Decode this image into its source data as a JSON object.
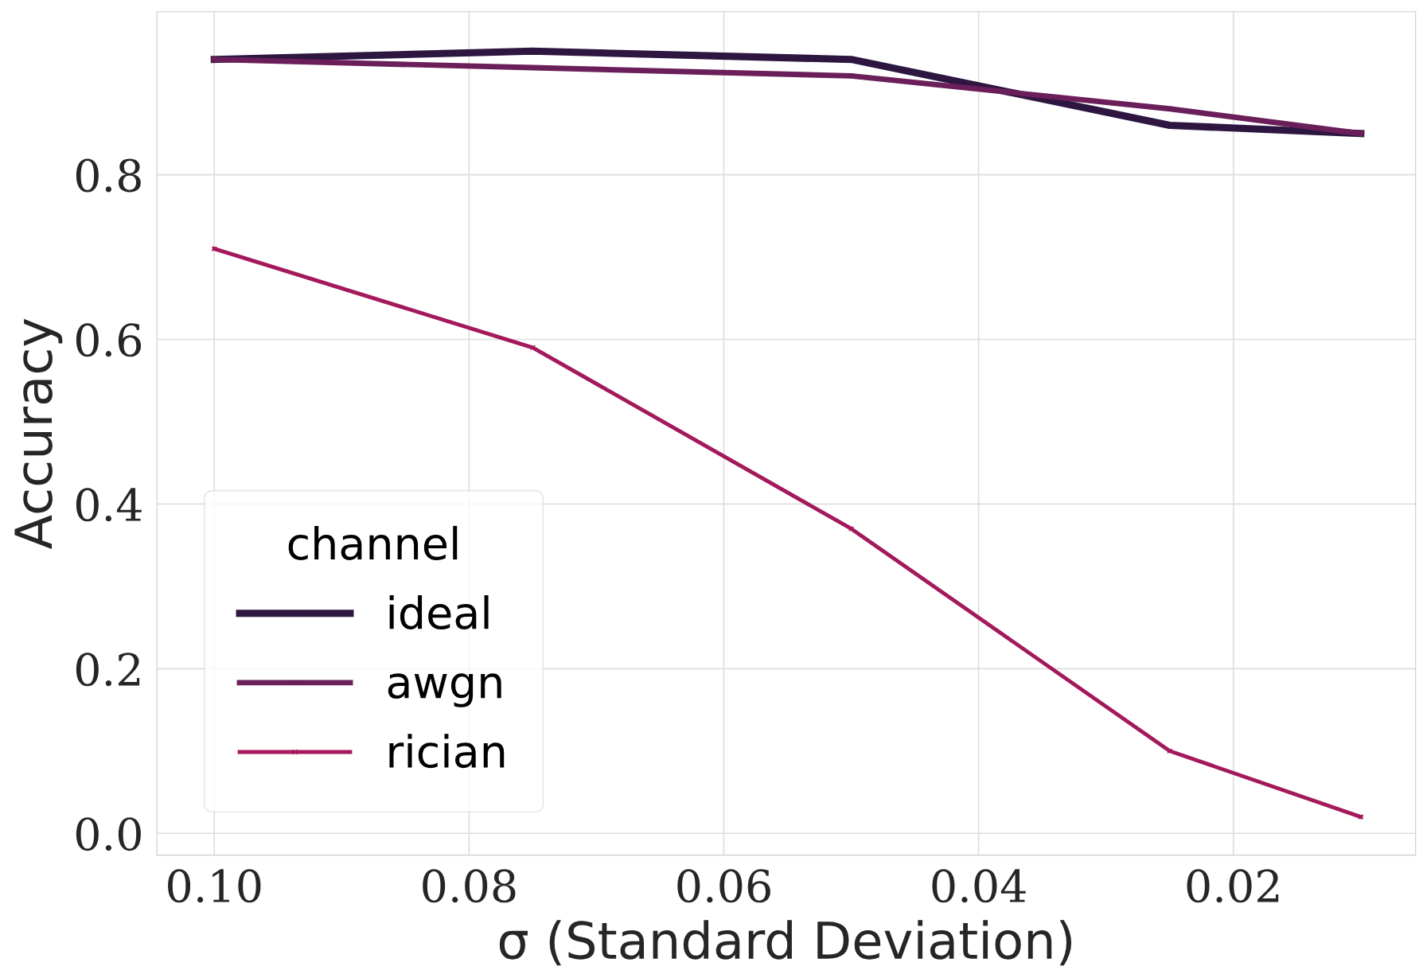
{
  "chart_data": {
    "type": "line",
    "xlabel": "σ (Standard Deviation)",
    "ylabel": "Accuracy",
    "legend_title": "channel",
    "x": [
      0.1,
      0.075,
      0.05,
      0.025,
      0.01
    ],
    "series": [
      {
        "name": "ideal",
        "color": "#2d1640",
        "values": [
          0.94,
          0.95,
          0.94,
          0.86,
          0.85
        ]
      },
      {
        "name": "awgn",
        "color": "#6b1f5a",
        "values": [
          0.94,
          0.93,
          0.92,
          0.88,
          0.85
        ]
      },
      {
        "name": "rician",
        "color": "#a3195b",
        "values": [
          0.71,
          0.59,
          0.37,
          0.1,
          0.02
        ]
      }
    ],
    "xlim": [
      0.1045,
      0.0057
    ],
    "xticks": [
      {
        "value": 0.1,
        "label": "0.10"
      },
      0.08,
      0.06,
      0.04,
      0.02
    ],
    "ylim": [
      -0.0265,
      0.998
    ],
    "yticks": [
      {
        "value": 0.0,
        "label": "0.0"
      },
      0.2,
      0.4,
      0.6,
      0.8
    ],
    "grid": true,
    "legend": "bottom left",
    "marker": "cross",
    "line_style": "solid"
  }
}
